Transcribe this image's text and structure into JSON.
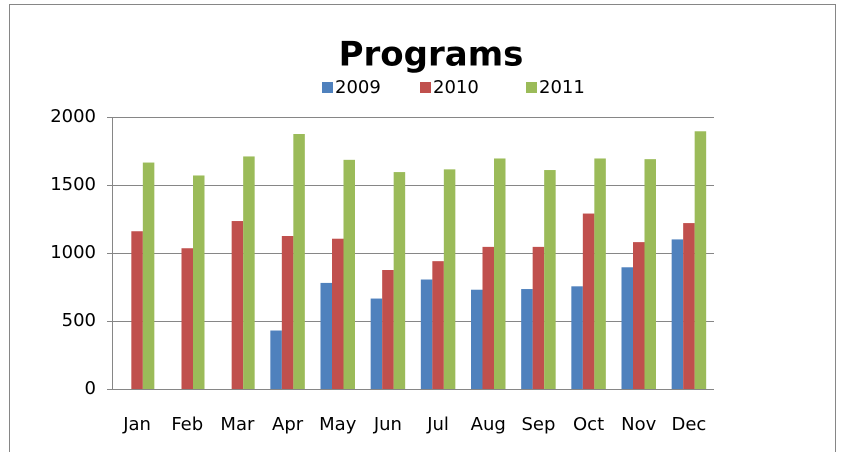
{
  "chart_data": {
    "type": "bar",
    "title": "Programs",
    "categories": [
      "Jan",
      "Feb",
      "Mar",
      "Apr",
      "May",
      "Jun",
      "Jul",
      "Aug",
      "Sep",
      "Oct",
      "Nov",
      "Dec"
    ],
    "series": [
      {
        "name": "2009",
        "color": "#4f81bd",
        "values": [
          null,
          null,
          null,
          430,
          780,
          665,
          805,
          730,
          735,
          755,
          895,
          1100
        ]
      },
      {
        "name": "2010",
        "color": "#c0504d",
        "values": [
          1160,
          1035,
          1235,
          1125,
          1105,
          875,
          940,
          1045,
          1045,
          1290,
          1080,
          1220
        ]
      },
      {
        "name": "2011",
        "color": "#9bbb59",
        "values": [
          1665,
          1570,
          1710,
          1875,
          1685,
          1595,
          1615,
          1695,
          1610,
          1695,
          1690,
          1895
        ]
      }
    ],
    "ylim": [
      0,
      2000
    ],
    "yticks": [
      0,
      500,
      1000,
      1500,
      2000
    ],
    "grid": true,
    "legend": "top"
  }
}
